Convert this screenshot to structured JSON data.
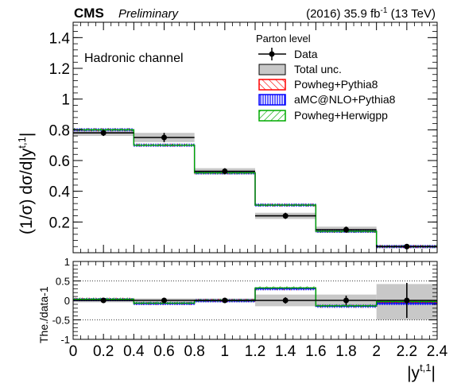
{
  "header": {
    "experiment": "CMS",
    "status": "Preliminary",
    "lumi_prefix": "(2016) 35.9 fb",
    "lumi_exp": "-1",
    "lumi_suffix": " (13 TeV)"
  },
  "chart_data": [
    {
      "type": "bar",
      "panel": "main",
      "ylabel": "(1/σ) dσ/d|y",
      "ylabel_sup": "t,1",
      "ylabel_end": "|",
      "annotation": "Hadronic channel",
      "legend_title": "Parton level",
      "legend_placement": "top-right",
      "xlim": [
        0,
        2.4
      ],
      "ylim": [
        0,
        1.5
      ],
      "yticks": [
        0.2,
        0.4,
        0.6,
        0.8,
        1.0,
        1.2,
        1.4
      ],
      "ytick_labels": [
        "0.2",
        "0.4",
        "0.6",
        "0.8",
        "1",
        "1.2",
        "1.4"
      ],
      "bin_edges": [
        0,
        0.4,
        0.8,
        1.2,
        1.6,
        2.0,
        2.4
      ],
      "series": [
        {
          "name": "Data",
          "kind": "points",
          "x": [
            0.2,
            0.6,
            1.0,
            1.4,
            1.8,
            2.2
          ],
          "values": [
            0.78,
            0.75,
            0.53,
            0.24,
            0.15,
            0.04
          ],
          "stat_err": [
            0.02,
            0.03,
            0.02,
            0.02,
            0.02,
            0.01
          ]
        },
        {
          "name": "Total unc.",
          "kind": "band",
          "low": [
            0.76,
            0.72,
            0.51,
            0.22,
            0.13,
            0.03
          ],
          "high": [
            0.8,
            0.78,
            0.55,
            0.26,
            0.17,
            0.05
          ]
        },
        {
          "name": "Powheg+Pythia8",
          "kind": "step",
          "color": "#ff0000",
          "values": [
            0.8,
            0.7,
            0.52,
            0.31,
            0.14,
            0.04
          ]
        },
        {
          "name": "aMC@NLO+Pythia8",
          "kind": "step",
          "color": "#0000ff",
          "values": [
            0.8,
            0.7,
            0.52,
            0.31,
            0.14,
            0.04
          ]
        },
        {
          "name": "Powheg+Herwigpp",
          "kind": "step",
          "color": "#00aa00",
          "values": [
            0.8,
            0.7,
            0.52,
            0.31,
            0.14,
            0.04
          ]
        }
      ]
    },
    {
      "type": "bar",
      "panel": "ratio",
      "xlabel": "|y",
      "xlabel_sup": "t,1",
      "xlabel_end": "|",
      "ylabel": "The./data-1",
      "xlim": [
        0,
        2.4
      ],
      "ylim": [
        -1,
        1
      ],
      "yticks": [
        -1,
        -0.5,
        0,
        0.5,
        1
      ],
      "ytick_labels": [
        "-1",
        "-0.5",
        "0",
        "0.5",
        "1"
      ],
      "xticks": [
        0,
        0.2,
        0.4,
        0.6,
        0.8,
        1.0,
        1.2,
        1.4,
        1.6,
        1.8,
        2.0,
        2.2,
        2.4
      ],
      "xtick_labels": [
        "0",
        "0.2",
        "0.4",
        "0.6",
        "0.8",
        "1",
        "1.2",
        "1.4",
        "1.6",
        "1.8",
        "2",
        "2.2",
        "2.4"
      ],
      "dotted_lines": [
        -0.5,
        0.5
      ],
      "series": [
        {
          "name": "Data",
          "kind": "points",
          "x": [
            0.2,
            0.6,
            1.0,
            1.4,
            1.8,
            2.2
          ],
          "values": [
            0,
            0,
            0,
            0,
            0,
            0
          ],
          "stat_err": [
            0.02,
            0.04,
            0.04,
            0.08,
            0.12,
            0.45
          ]
        },
        {
          "name": "Total unc.",
          "kind": "band",
          "low": [
            -0.05,
            -0.05,
            -0.05,
            -0.15,
            -0.15,
            -0.5
          ],
          "high": [
            0.05,
            0.05,
            0.05,
            0.15,
            0.15,
            0.42
          ]
        },
        {
          "name": "Powheg+Pythia8",
          "kind": "step",
          "color": "#ff0000",
          "values": [
            0.03,
            -0.08,
            0.0,
            0.3,
            -0.15,
            -0.05
          ]
        },
        {
          "name": "aMC@NLO+Pythia8",
          "kind": "step",
          "color": "#0000ff",
          "values": [
            0.02,
            -0.08,
            -0.01,
            0.3,
            -0.15,
            -0.08
          ]
        },
        {
          "name": "Powheg+Herwigpp",
          "kind": "step",
          "color": "#00aa00",
          "values": [
            0.03,
            -0.07,
            0.0,
            0.32,
            -0.14,
            -0.03
          ]
        }
      ]
    }
  ]
}
